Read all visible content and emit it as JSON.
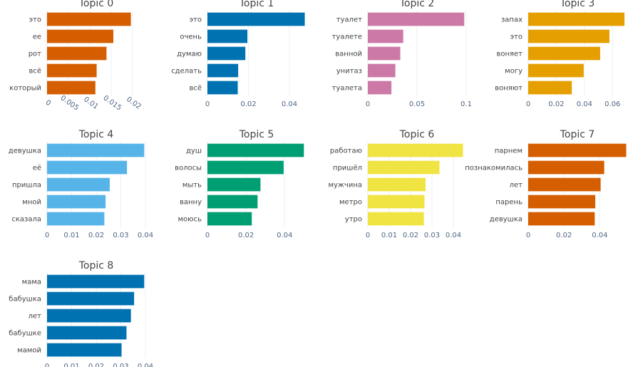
{
  "chart_data": [
    {
      "type": "bar",
      "orientation": "horizontal",
      "title": "Topic 0",
      "categories": [
        "это",
        "ее",
        "рот",
        "всё",
        "который"
      ],
      "values": [
        0.0196,
        0.0155,
        0.0139,
        0.0116,
        0.0113
      ],
      "xlim": [
        0,
        0.023
      ],
      "xticks": [
        "0",
        "0.005",
        "0.01",
        "0.015",
        "0.02"
      ],
      "xtick_values": [
        0,
        0.005,
        0.01,
        0.015,
        0.02
      ],
      "tick_rotation": 35,
      "color": "#D55E00"
    },
    {
      "type": "bar",
      "orientation": "horizontal",
      "title": "Topic 1",
      "categories": [
        "это",
        "очень",
        "думаю",
        "сделать",
        "всё"
      ],
      "values": [
        0.0475,
        0.0195,
        0.0185,
        0.015,
        0.0148
      ],
      "xlim": [
        0,
        0.048
      ],
      "xticks": [
        "0",
        "0.02",
        "0.04"
      ],
      "xtick_values": [
        0,
        0.02,
        0.04
      ],
      "tick_rotation": 0,
      "color": "#0072B2"
    },
    {
      "type": "bar",
      "orientation": "horizontal",
      "title": "Topic 2",
      "categories": [
        "туалет",
        "туалете",
        "ванной",
        "унитаз",
        "туалета"
      ],
      "values": [
        0.098,
        0.036,
        0.033,
        0.028,
        0.024
      ],
      "xlim": [
        0,
        0.1
      ],
      "xticks": [
        "0",
        "0.05",
        "0.1"
      ],
      "xtick_values": [
        0,
        0.05,
        0.1
      ],
      "tick_rotation": 0,
      "color": "#CC79A7"
    },
    {
      "type": "bar",
      "orientation": "horizontal",
      "title": "Topic 3",
      "categories": [
        "запах",
        "это",
        "воняет",
        "могу",
        "воняют"
      ],
      "values": [
        0.0685,
        0.0578,
        0.0512,
        0.0395,
        0.031
      ],
      "xlim": [
        0,
        0.07
      ],
      "xticks": [
        "0",
        "0.02",
        "0.04",
        "0.06"
      ],
      "xtick_values": [
        0,
        0.02,
        0.04,
        0.06
      ],
      "tick_rotation": 0,
      "color": "#E69F00"
    },
    {
      "type": "bar",
      "orientation": "horizontal",
      "title": "Topic 4",
      "categories": [
        "девушка",
        "её",
        "пришла",
        "мной",
        "сказала"
      ],
      "values": [
        0.0395,
        0.0325,
        0.0255,
        0.0238,
        0.0233
      ],
      "xlim": [
        0,
        0.04
      ],
      "xticks": [
        "0",
        "0.01",
        "0.02",
        "0.03",
        "0.04"
      ],
      "xtick_values": [
        0,
        0.01,
        0.02,
        0.03,
        0.04
      ],
      "tick_rotation": 0,
      "color": "#56B4E9"
    },
    {
      "type": "bar",
      "orientation": "horizontal",
      "title": "Topic 5",
      "categories": [
        "душ",
        "волосы",
        "мыть",
        "ванну",
        "моюсь"
      ],
      "values": [
        0.05,
        0.0395,
        0.0275,
        0.026,
        0.023
      ],
      "xlim": [
        0,
        0.051
      ],
      "xticks": [
        "0",
        "0.02",
        "0.04"
      ],
      "xtick_values": [
        0,
        0.02,
        0.04
      ],
      "tick_rotation": 0,
      "color": "#009E73"
    },
    {
      "type": "bar",
      "orientation": "horizontal",
      "title": "Topic 6",
      "categories": [
        "работаю",
        "пришёл",
        "мужчина",
        "метро",
        "утро"
      ],
      "values": [
        0.0445,
        0.0335,
        0.027,
        0.0265,
        0.0262
      ],
      "xlim": [
        0,
        0.046
      ],
      "xticks": [
        "0",
        "0.01",
        "0.02",
        "0.03",
        "0.04"
      ],
      "xtick_values": [
        0,
        0.01,
        0.02,
        0.03,
        0.04
      ],
      "tick_rotation": 0,
      "color": "#F0E442"
    },
    {
      "type": "bar",
      "orientation": "horizontal",
      "title": "Topic 7",
      "categories": [
        "парнем",
        "познакомилась",
        "лет",
        "парень",
        "девушка"
      ],
      "values": [
        0.0548,
        0.0425,
        0.0405,
        0.0375,
        0.0372
      ],
      "xlim": [
        0,
        0.055
      ],
      "xticks": [
        "0",
        "0.02",
        "0.04"
      ],
      "xtick_values": [
        0,
        0.02,
        0.04
      ],
      "tick_rotation": 0,
      "color": "#D55E00"
    },
    {
      "type": "bar",
      "orientation": "horizontal",
      "title": "Topic 8",
      "categories": [
        "мама",
        "бабушка",
        "лет",
        "бабушке",
        "мамой"
      ],
      "values": [
        0.0395,
        0.0354,
        0.0341,
        0.0323,
        0.0303
      ],
      "xlim": [
        0,
        0.04
      ],
      "xticks": [
        "0",
        "0.01",
        "0.02",
        "0.03",
        "0.04"
      ],
      "xtick_values": [
        0,
        0.01,
        0.02,
        0.03,
        0.04
      ],
      "tick_rotation": 0,
      "color": "#0072B2"
    }
  ]
}
